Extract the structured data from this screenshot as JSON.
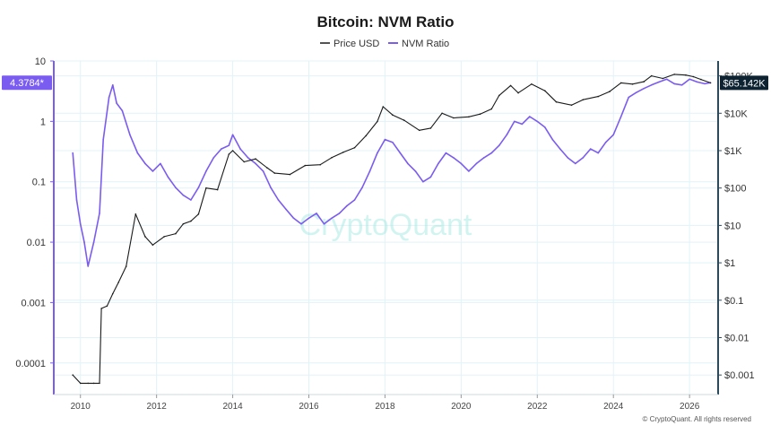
{
  "chart_data": {
    "type": "line",
    "title": "Bitcoin: NVM Ratio",
    "legend": [
      "Price USD",
      "NVM Ratio"
    ],
    "legend_position": "top-center",
    "x_ticks": [
      "2010",
      "2012",
      "2014",
      "2016",
      "2018",
      "2020",
      "2022",
      "2024",
      "2026"
    ],
    "x_range": [
      2009.3,
      2026.75
    ],
    "left_axis": {
      "scale": "log",
      "range": [
        3e-05,
        10
      ],
      "ticks": [
        10,
        1,
        0.1,
        0.01,
        0.001,
        0.0001
      ],
      "tick_labels": [
        "10",
        "1",
        "0.1",
        "0.01",
        "0.001",
        "0.0001"
      ]
    },
    "right_axis": {
      "scale": "log",
      "range": [
        0.0003,
        250000
      ],
      "ticks": [
        100000,
        10000,
        1000,
        100,
        10,
        1,
        0.1,
        0.01,
        0.001
      ],
      "tick_labels": [
        "$100K",
        "$10K",
        "$1K",
        "$100",
        "$10",
        "$1",
        "$0.1",
        "$0.01",
        "$0.001"
      ]
    },
    "grid": true,
    "current_labels": {
      "nvm": "4.3784*",
      "price": "$65.142K"
    },
    "current_values": {
      "nvm": 4.3784,
      "price": 65142
    },
    "colors": {
      "price": "#1a1a1a",
      "nvm": "#7b5cf0",
      "grid": "#e2f3f7",
      "left_axis": "#7b5cf0",
      "right_axis": "#2d4a5c"
    },
    "series": [
      {
        "name": "NVM Ratio",
        "axis": "left",
        "x": [
          2009.8,
          2009.9,
          2010.0,
          2010.1,
          2010.2,
          2010.35,
          2010.5,
          2010.6,
          2010.75,
          2010.85,
          2010.95,
          2011.1,
          2011.3,
          2011.5,
          2011.7,
          2011.9,
          2012.1,
          2012.3,
          2012.5,
          2012.7,
          2012.9,
          2013.1,
          2013.3,
          2013.5,
          2013.7,
          2013.9,
          2014.0,
          2014.2,
          2014.4,
          2014.6,
          2014.8,
          2015.0,
          2015.2,
          2015.4,
          2015.6,
          2015.8,
          2016.0,
          2016.2,
          2016.4,
          2016.6,
          2016.8,
          2017.0,
          2017.2,
          2017.4,
          2017.6,
          2017.8,
          2018.0,
          2018.2,
          2018.4,
          2018.6,
          2018.8,
          2019.0,
          2019.2,
          2019.4,
          2019.6,
          2019.8,
          2020.0,
          2020.2,
          2020.4,
          2020.6,
          2020.8,
          2021.0,
          2021.2,
          2021.4,
          2021.6,
          2021.8,
          2022.0,
          2022.2,
          2022.4,
          2022.6,
          2022.8,
          2023.0,
          2023.2,
          2023.4,
          2023.6,
          2023.8,
          2024.0,
          2024.2,
          2024.4,
          2024.6,
          2024.8,
          2025.0,
          2025.2,
          2025.4,
          2025.6,
          2025.8,
          2026.0,
          2026.2,
          2026.4,
          2026.55
        ],
        "values": [
          0.3,
          0.05,
          0.02,
          0.01,
          0.004,
          0.01,
          0.03,
          0.5,
          2.5,
          4.0,
          2.0,
          1.5,
          0.6,
          0.3,
          0.2,
          0.15,
          0.2,
          0.12,
          0.08,
          0.06,
          0.05,
          0.08,
          0.15,
          0.25,
          0.35,
          0.4,
          0.6,
          0.35,
          0.25,
          0.2,
          0.15,
          0.08,
          0.05,
          0.035,
          0.025,
          0.02,
          0.025,
          0.03,
          0.02,
          0.025,
          0.03,
          0.04,
          0.05,
          0.08,
          0.15,
          0.3,
          0.5,
          0.45,
          0.3,
          0.2,
          0.15,
          0.1,
          0.12,
          0.2,
          0.3,
          0.25,
          0.2,
          0.15,
          0.2,
          0.25,
          0.3,
          0.4,
          0.6,
          1.0,
          0.9,
          1.2,
          1.0,
          0.8,
          0.5,
          0.35,
          0.25,
          0.2,
          0.25,
          0.35,
          0.3,
          0.45,
          0.6,
          1.2,
          2.5,
          3.0,
          3.5,
          4.0,
          4.5,
          5.0,
          4.2,
          4.0,
          5.0,
          4.5,
          4.2,
          4.3784
        ]
      },
      {
        "name": "Price USD",
        "axis": "right",
        "x": [
          2009.8,
          2010.0,
          2010.2,
          2010.35,
          2010.5,
          2010.55,
          2010.7,
          2010.85,
          2011.0,
          2011.2,
          2011.45,
          2011.7,
          2011.9,
          2012.2,
          2012.5,
          2012.7,
          2012.9,
          2013.1,
          2013.3,
          2013.6,
          2013.9,
          2014.0,
          2014.3,
          2014.6,
          2014.9,
          2015.1,
          2015.5,
          2015.9,
          2016.3,
          2016.6,
          2016.9,
          2017.2,
          2017.5,
          2017.8,
          2017.95,
          2018.2,
          2018.5,
          2018.9,
          2019.2,
          2019.5,
          2019.8,
          2020.2,
          2020.5,
          2020.8,
          2021.0,
          2021.3,
          2021.5,
          2021.85,
          2022.2,
          2022.5,
          2022.9,
          2023.2,
          2023.6,
          2023.9,
          2024.2,
          2024.5,
          2024.8,
          2025.0,
          2025.3,
          2025.6,
          2025.9,
          2026.1,
          2026.3,
          2026.55
        ],
        "values": [
          0.001,
          0.0006,
          0.0006,
          0.0006,
          0.0006,
          0.06,
          0.07,
          0.15,
          0.3,
          0.8,
          20,
          5,
          3,
          5,
          6,
          11,
          13,
          20,
          100,
          90,
          800,
          1000,
          500,
          600,
          350,
          250,
          230,
          400,
          420,
          650,
          900,
          1200,
          2500,
          6000,
          15000,
          9000,
          6500,
          3500,
          4000,
          10000,
          7500,
          8000,
          9500,
          13000,
          30000,
          55000,
          35000,
          60000,
          40000,
          20000,
          16500,
          23000,
          28000,
          38000,
          65000,
          60000,
          70000,
          100000,
          85000,
          110000,
          105000,
          95000,
          80000,
          65142
        ]
      }
    ],
    "watermark": "CryptoQuant",
    "copyright": "© CryptoQuant. All rights reserved"
  }
}
